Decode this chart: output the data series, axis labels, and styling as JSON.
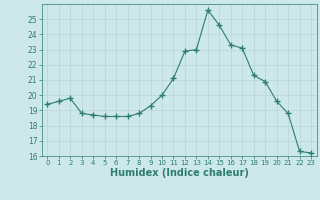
{
  "x": [
    0,
    1,
    2,
    3,
    4,
    5,
    6,
    7,
    8,
    9,
    10,
    11,
    12,
    13,
    14,
    15,
    16,
    17,
    18,
    19,
    20,
    21,
    22,
    23
  ],
  "y": [
    19.4,
    19.6,
    19.8,
    18.8,
    18.7,
    18.6,
    18.6,
    18.6,
    18.8,
    19.3,
    20.0,
    21.1,
    22.9,
    23.0,
    25.6,
    24.6,
    23.3,
    23.1,
    21.3,
    20.9,
    19.6,
    18.8,
    16.3,
    16.2
  ],
  "line_color": "#2e7d6e",
  "marker": "+",
  "marker_size": 4,
  "bg_color": "#cce8e8",
  "grid_color": "#b8d4d4",
  "tick_label_color": "#2e7d6e",
  "xlabel": "Humidex (Indice chaleur)",
  "xlabel_fontsize": 7,
  "ylim": [
    16,
    26
  ],
  "xlim": [
    -0.5,
    23.5
  ],
  "yticks": [
    16,
    17,
    18,
    19,
    20,
    21,
    22,
    23,
    24,
    25
  ],
  "xticks": [
    0,
    1,
    2,
    3,
    4,
    5,
    6,
    7,
    8,
    9,
    10,
    11,
    12,
    13,
    14,
    15,
    16,
    17,
    18,
    19,
    20,
    21,
    22,
    23
  ]
}
